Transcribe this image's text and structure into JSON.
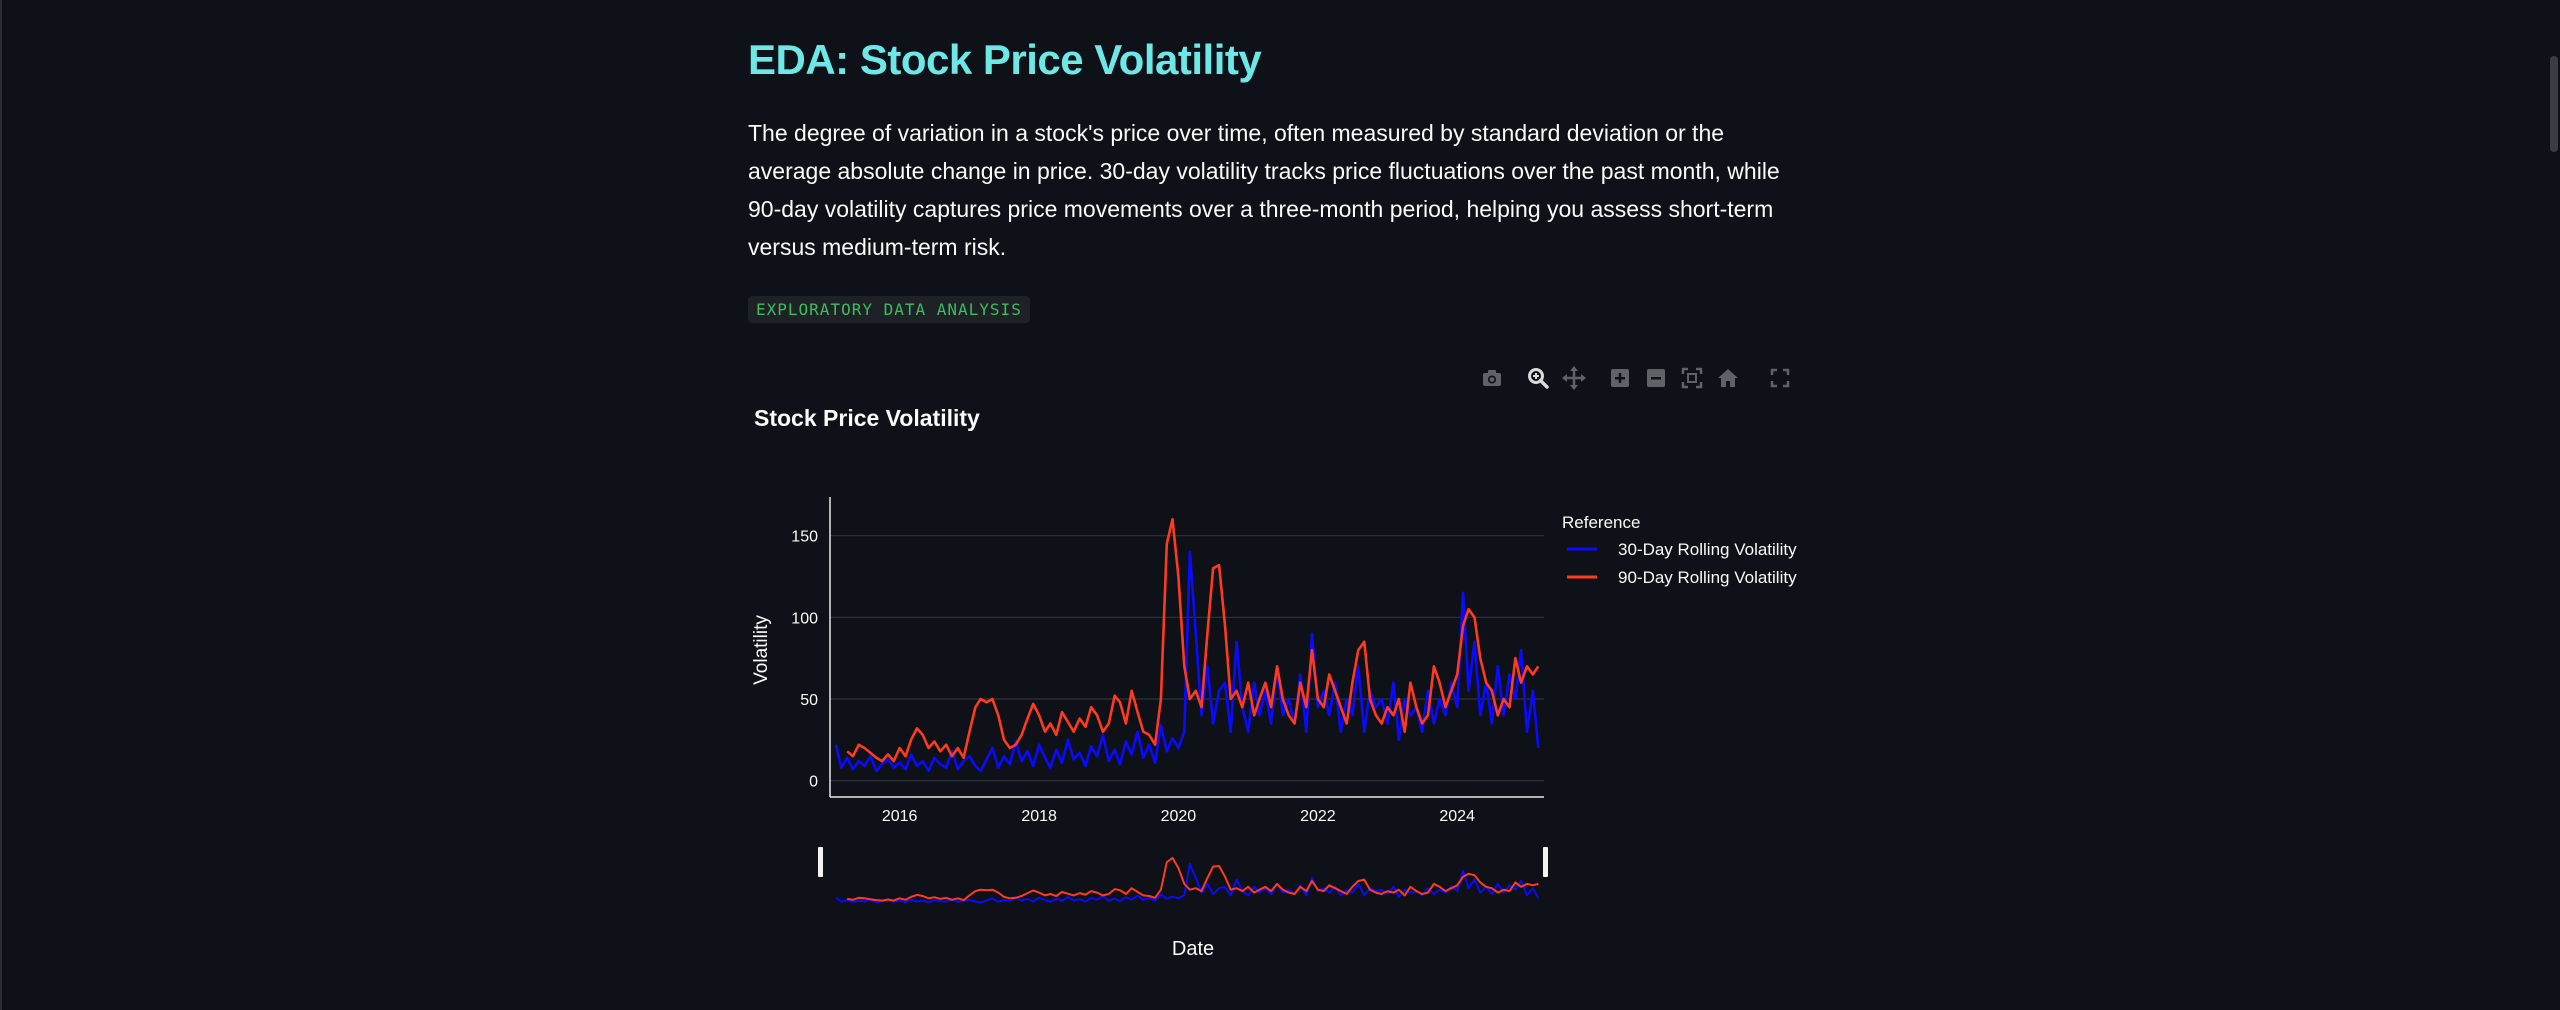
{
  "page": {
    "title": "EDA: Stock Price Volatility",
    "description": "The degree of variation in a stock's price over time, often measured by standard deviation or the average absolute change in price. 30-day volatility tracks price fluctuations over the past month, while 90-day volatility captures price movements over a three-month period, helping you assess short-term versus medium-term risk.",
    "tag": "EXPLORATORY DATA ANALYSIS"
  },
  "modebar": {
    "icons": [
      "camera-icon",
      "zoom-icon",
      "pan-icon",
      "zoom-in-icon",
      "zoom-out-icon",
      "autoscale-icon",
      "home-icon",
      "fullscreen-icon"
    ]
  },
  "colors": {
    "background": "#0e1117",
    "title": "#6ee7e7",
    "tag_text": "#3dbd5d",
    "series_30": "#0a0aff",
    "series_90": "#ff3b1f"
  },
  "chart_data": {
    "type": "line",
    "title": "Stock Price Volatility",
    "xlabel": "Date",
    "ylabel": "Volatility",
    "xlim": [
      "2015-01-01",
      "2025-03-31"
    ],
    "ylim": [
      -10,
      170
    ],
    "x_ticks": [
      "2016",
      "2018",
      "2020",
      "2022",
      "2024"
    ],
    "y_ticks": [
      0,
      50,
      100,
      150
    ],
    "grid": true,
    "legend": {
      "title": "Reference",
      "placement": "top-right outside"
    },
    "range_slider": true,
    "series": [
      {
        "name": "30-Day Rolling Volatility",
        "x": [
          "2015-02-01",
          "2015-03-01",
          "2015-04-01",
          "2015-05-01",
          "2015-06-01",
          "2015-07-01",
          "2015-08-01",
          "2015-09-01",
          "2015-10-01",
          "2015-11-01",
          "2015-12-01",
          "2016-01-01",
          "2016-02-01",
          "2016-03-01",
          "2016-04-01",
          "2016-05-01",
          "2016-06-01",
          "2016-07-01",
          "2016-08-01",
          "2016-09-01",
          "2016-10-01",
          "2016-11-01",
          "2016-12-01",
          "2017-01-01",
          "2017-02-01",
          "2017-03-01",
          "2017-04-01",
          "2017-05-01",
          "2017-06-01",
          "2017-07-01",
          "2017-08-01",
          "2017-09-01",
          "2017-10-01",
          "2017-11-01",
          "2017-12-01",
          "2018-01-01",
          "2018-02-01",
          "2018-03-01",
          "2018-04-01",
          "2018-05-01",
          "2018-06-01",
          "2018-07-01",
          "2018-08-01",
          "2018-09-01",
          "2018-10-01",
          "2018-11-01",
          "2018-12-01",
          "2019-01-01",
          "2019-02-01",
          "2019-03-01",
          "2019-04-01",
          "2019-05-01",
          "2019-06-01",
          "2019-07-01",
          "2019-08-01",
          "2019-09-01",
          "2019-10-01",
          "2019-11-01",
          "2019-12-01",
          "2020-01-01",
          "2020-02-01",
          "2020-03-01",
          "2020-04-01",
          "2020-05-01",
          "2020-06-01",
          "2020-07-01",
          "2020-08-01",
          "2020-09-01",
          "2020-10-01",
          "2020-11-01",
          "2020-12-01",
          "2021-01-01",
          "2021-02-01",
          "2021-03-01",
          "2021-04-01",
          "2021-05-01",
          "2021-06-01",
          "2021-07-01",
          "2021-08-01",
          "2021-09-01",
          "2021-10-01",
          "2021-11-01",
          "2021-12-01",
          "2022-01-01",
          "2022-02-01",
          "2022-03-01",
          "2022-04-01",
          "2022-05-01",
          "2022-06-01",
          "2022-07-01",
          "2022-08-01",
          "2022-09-01",
          "2022-10-01",
          "2022-11-01",
          "2022-12-01",
          "2023-01-01",
          "2023-02-01",
          "2023-03-01",
          "2023-04-01",
          "2023-05-01",
          "2023-06-01",
          "2023-07-01",
          "2023-08-01",
          "2023-09-01",
          "2023-10-01",
          "2023-11-01",
          "2023-12-01",
          "2024-01-01",
          "2024-02-01",
          "2024-03-01",
          "2024-04-01",
          "2024-05-01",
          "2024-06-01",
          "2024-07-01",
          "2024-08-01",
          "2024-09-01",
          "2024-10-01",
          "2024-11-01",
          "2024-12-01",
          "2025-01-01",
          "2025-02-01",
          "2025-03-01"
        ],
        "y": [
          22,
          8,
          14,
          7,
          12,
          9,
          15,
          6,
          10,
          13,
          8,
          11,
          7,
          16,
          9,
          12,
          6,
          14,
          10,
          8,
          18,
          7,
          12,
          15,
          9,
          6,
          13,
          20,
          8,
          15,
          10,
          24,
          12,
          18,
          9,
          22,
          14,
          8,
          19,
          11,
          25,
          13,
          17,
          9,
          21,
          15,
          28,
          12,
          19,
          10,
          24,
          16,
          30,
          14,
          22,
          11,
          34,
          18,
          26,
          20,
          30,
          140,
          90,
          40,
          70,
          35,
          55,
          60,
          30,
          85,
          45,
          30,
          60,
          40,
          55,
          35,
          70,
          40,
          50,
          35,
          65,
          30,
          90,
          45,
          55,
          40,
          60,
          30,
          50,
          40,
          70,
          30,
          55,
          45,
          50,
          35,
          60,
          25,
          50,
          40,
          45,
          30,
          55,
          35,
          50,
          40,
          60,
          45,
          115,
          55,
          85,
          40,
          60,
          35,
          70,
          40,
          65,
          50,
          80,
          30,
          55,
          20
        ]
      },
      {
        "name": "90-Day Rolling Volatility",
        "x": [
          "2015-04-01",
          "2015-05-01",
          "2015-06-01",
          "2015-07-01",
          "2015-08-01",
          "2015-09-01",
          "2015-10-01",
          "2015-11-01",
          "2015-12-01",
          "2016-01-01",
          "2016-02-01",
          "2016-03-01",
          "2016-04-01",
          "2016-05-01",
          "2016-06-01",
          "2016-07-01",
          "2016-08-01",
          "2016-09-01",
          "2016-10-01",
          "2016-11-01",
          "2016-12-01",
          "2017-01-01",
          "2017-02-01",
          "2017-03-01",
          "2017-04-01",
          "2017-05-01",
          "2017-06-01",
          "2017-07-01",
          "2017-08-01",
          "2017-09-01",
          "2017-10-01",
          "2017-11-01",
          "2017-12-01",
          "2018-01-01",
          "2018-02-01",
          "2018-03-01",
          "2018-04-01",
          "2018-05-01",
          "2018-06-01",
          "2018-07-01",
          "2018-08-01",
          "2018-09-01",
          "2018-10-01",
          "2018-11-01",
          "2018-12-01",
          "2019-01-01",
          "2019-02-01",
          "2019-03-01",
          "2019-04-01",
          "2019-05-01",
          "2019-06-01",
          "2019-07-01",
          "2019-08-01",
          "2019-09-01",
          "2019-10-01",
          "2019-11-01",
          "2019-12-01",
          "2020-01-01",
          "2020-02-01",
          "2020-03-01",
          "2020-04-01",
          "2020-05-01",
          "2020-06-01",
          "2020-07-01",
          "2020-08-01",
          "2020-09-01",
          "2020-10-01",
          "2020-11-01",
          "2020-12-01",
          "2021-01-01",
          "2021-02-01",
          "2021-03-01",
          "2021-04-01",
          "2021-05-01",
          "2021-06-01",
          "2021-07-01",
          "2021-08-01",
          "2021-09-01",
          "2021-10-01",
          "2021-11-01",
          "2021-12-01",
          "2022-01-01",
          "2022-02-01",
          "2022-03-01",
          "2022-04-01",
          "2022-05-01",
          "2022-06-01",
          "2022-07-01",
          "2022-08-01",
          "2022-09-01",
          "2022-10-01",
          "2022-11-01",
          "2022-12-01",
          "2023-01-01",
          "2023-02-01",
          "2023-03-01",
          "2023-04-01",
          "2023-05-01",
          "2023-06-01",
          "2023-07-01",
          "2023-08-01",
          "2023-09-01",
          "2023-10-01",
          "2023-11-01",
          "2023-12-01",
          "2024-01-01",
          "2024-02-01",
          "2024-03-01",
          "2024-04-01",
          "2024-05-01",
          "2024-06-01",
          "2024-07-01",
          "2024-08-01",
          "2024-09-01",
          "2024-10-01",
          "2024-11-01",
          "2024-12-01",
          "2025-01-01",
          "2025-02-01",
          "2025-03-01"
        ],
        "y": [
          18,
          15,
          22,
          20,
          17,
          14,
          12,
          16,
          12,
          20,
          15,
          25,
          32,
          28,
          20,
          24,
          18,
          22,
          15,
          20,
          14,
          30,
          45,
          50,
          48,
          50,
          40,
          25,
          20,
          22,
          28,
          38,
          47,
          40,
          30,
          35,
          28,
          42,
          36,
          30,
          38,
          33,
          45,
          40,
          30,
          35,
          52,
          48,
          35,
          55,
          42,
          30,
          28,
          22,
          50,
          145,
          160,
          125,
          70,
          50,
          55,
          45,
          90,
          130,
          132,
          95,
          50,
          55,
          45,
          60,
          40,
          50,
          60,
          45,
          70,
          50,
          40,
          35,
          60,
          45,
          80,
          50,
          45,
          65,
          55,
          45,
          35,
          60,
          80,
          85,
          50,
          40,
          35,
          45,
          40,
          50,
          30,
          60,
          45,
          35,
          40,
          70,
          60,
          45,
          55,
          65,
          95,
          105,
          100,
          75,
          60,
          55,
          40,
          50,
          45,
          75,
          60,
          70,
          65,
          70
        ]
      }
    ]
  }
}
